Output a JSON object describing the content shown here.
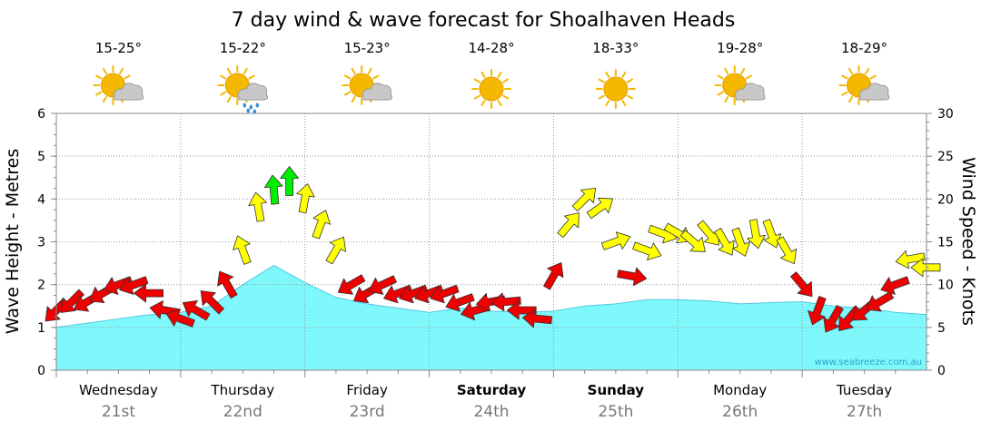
{
  "title": "7 day wind & wave forecast for Shoalhaven Heads",
  "credit": "www.seabreeze.com.au",
  "days": [
    {
      "name": "Wednesday",
      "date": "21st",
      "temp": "15-25°",
      "icon": "partly-cloudy-icon",
      "bold": false
    },
    {
      "name": "Thursday",
      "date": "22nd",
      "temp": "15-22°",
      "icon": "showers-icon",
      "bold": false
    },
    {
      "name": "Friday",
      "date": "23rd",
      "temp": "15-23°",
      "icon": "partly-cloudy-icon",
      "bold": false
    },
    {
      "name": "Saturday",
      "date": "24th",
      "temp": "14-28°",
      "icon": "sunny-icon",
      "bold": true
    },
    {
      "name": "Sunday",
      "date": "25th",
      "temp": "18-33°",
      "icon": "sunny-icon",
      "bold": true
    },
    {
      "name": "Monday",
      "date": "26th",
      "temp": "19-28°",
      "icon": "partly-cloudy-icon",
      "bold": false
    },
    {
      "name": "Tuesday",
      "date": "27th",
      "temp": "18-29°",
      "icon": "partly-cloudy-icon",
      "bold": false
    }
  ],
  "colors": {
    "wave_fill": "#7ff8fb",
    "wave_line": "#52c8e0",
    "wind_light": "#ee0000",
    "wind_moderate": "#ffff00",
    "wind_strong": "#00ee00",
    "sun": "#f5b800",
    "cloud": "#c8c8c8",
    "rain": "#3a8fd8"
  },
  "chart_data": {
    "type": "area",
    "xlabel": "",
    "ylabel_left": "Wave Height - Metres",
    "ylabel_right": "Wind Speed - Knots",
    "ylim_left": [
      0,
      6
    ],
    "ylim_right": [
      0,
      30
    ],
    "yticks_left": [
      "0",
      "1",
      "2",
      "3",
      "4",
      "5",
      "6"
    ],
    "yticks_right": [
      "0",
      "5",
      "10",
      "15",
      "20",
      "25",
      "30"
    ],
    "grid": true,
    "x_unit": "days from start of Wednesday 21st",
    "series": [
      {
        "name": "Wave Height - Metres",
        "axis": "left",
        "type": "area",
        "x": [
          0,
          0.25,
          0.5,
          0.75,
          1.0,
          1.25,
          1.5,
          1.75,
          2.0,
          2.25,
          2.5,
          2.75,
          3.0,
          3.25,
          3.5,
          3.75,
          4.0,
          4.25,
          4.5,
          4.75,
          5.0,
          5.25,
          5.5,
          5.75,
          6.0,
          6.25,
          6.5,
          6.75,
          7.0
        ],
        "values": [
          1.0,
          1.1,
          1.2,
          1.3,
          1.35,
          1.5,
          2.0,
          2.45,
          2.05,
          1.7,
          1.55,
          1.45,
          1.35,
          1.45,
          1.38,
          1.35,
          1.38,
          1.5,
          1.55,
          1.65,
          1.65,
          1.62,
          1.55,
          1.58,
          1.6,
          1.5,
          1.45,
          1.35,
          1.3
        ]
      },
      {
        "name": "Wind Speed - Knots",
        "axis": "right",
        "type": "arrows",
        "x": [
          0.0,
          0.125,
          0.25,
          0.375,
          0.5,
          0.625,
          0.75,
          0.875,
          1.0,
          1.125,
          1.25,
          1.375,
          1.5,
          1.625,
          1.75,
          1.875,
          2.0,
          2.125,
          2.25,
          2.375,
          2.5,
          2.625,
          2.75,
          2.875,
          3.0,
          3.125,
          3.25,
          3.375,
          3.5,
          3.625,
          3.75,
          3.875,
          4.0,
          4.125,
          4.25,
          4.375,
          4.5,
          4.625,
          4.75,
          4.875,
          5.0,
          5.125,
          5.25,
          5.375,
          5.5,
          5.625,
          5.75,
          5.875,
          6.0,
          6.125,
          6.25,
          6.375,
          6.5,
          6.625,
          6.75,
          6.875,
          7.0
        ],
        "values": [
          7,
          8,
          8,
          9,
          10,
          10,
          9,
          7,
          6,
          7,
          8,
          10,
          14,
          19,
          21,
          22,
          20,
          17,
          14,
          10,
          9,
          10,
          9,
          9,
          9,
          9,
          8,
          7,
          8,
          8,
          7,
          6,
          11,
          17,
          20,
          19,
          15,
          11,
          14,
          16,
          16,
          15,
          16,
          15,
          15,
          16,
          16,
          14,
          10,
          7,
          6,
          6,
          7,
          8,
          10,
          13,
          12
        ],
        "direction_deg": [
          225,
          225,
          240,
          240,
          250,
          250,
          270,
          280,
          290,
          300,
          315,
          330,
          340,
          350,
          355,
          0,
          10,
          20,
          30,
          240,
          240,
          245,
          250,
          250,
          250,
          250,
          250,
          255,
          260,
          265,
          270,
          275,
          30,
          40,
          45,
          55,
          70,
          100,
          110,
          110,
          120,
          130,
          140,
          150,
          160,
          170,
          160,
          150,
          140,
          200,
          210,
          220,
          230,
          240,
          250,
          260,
          270
        ],
        "color_thresholds": {
          "light": "< 12",
          "moderate": "12-20",
          "strong": "> 20"
        }
      }
    ]
  }
}
